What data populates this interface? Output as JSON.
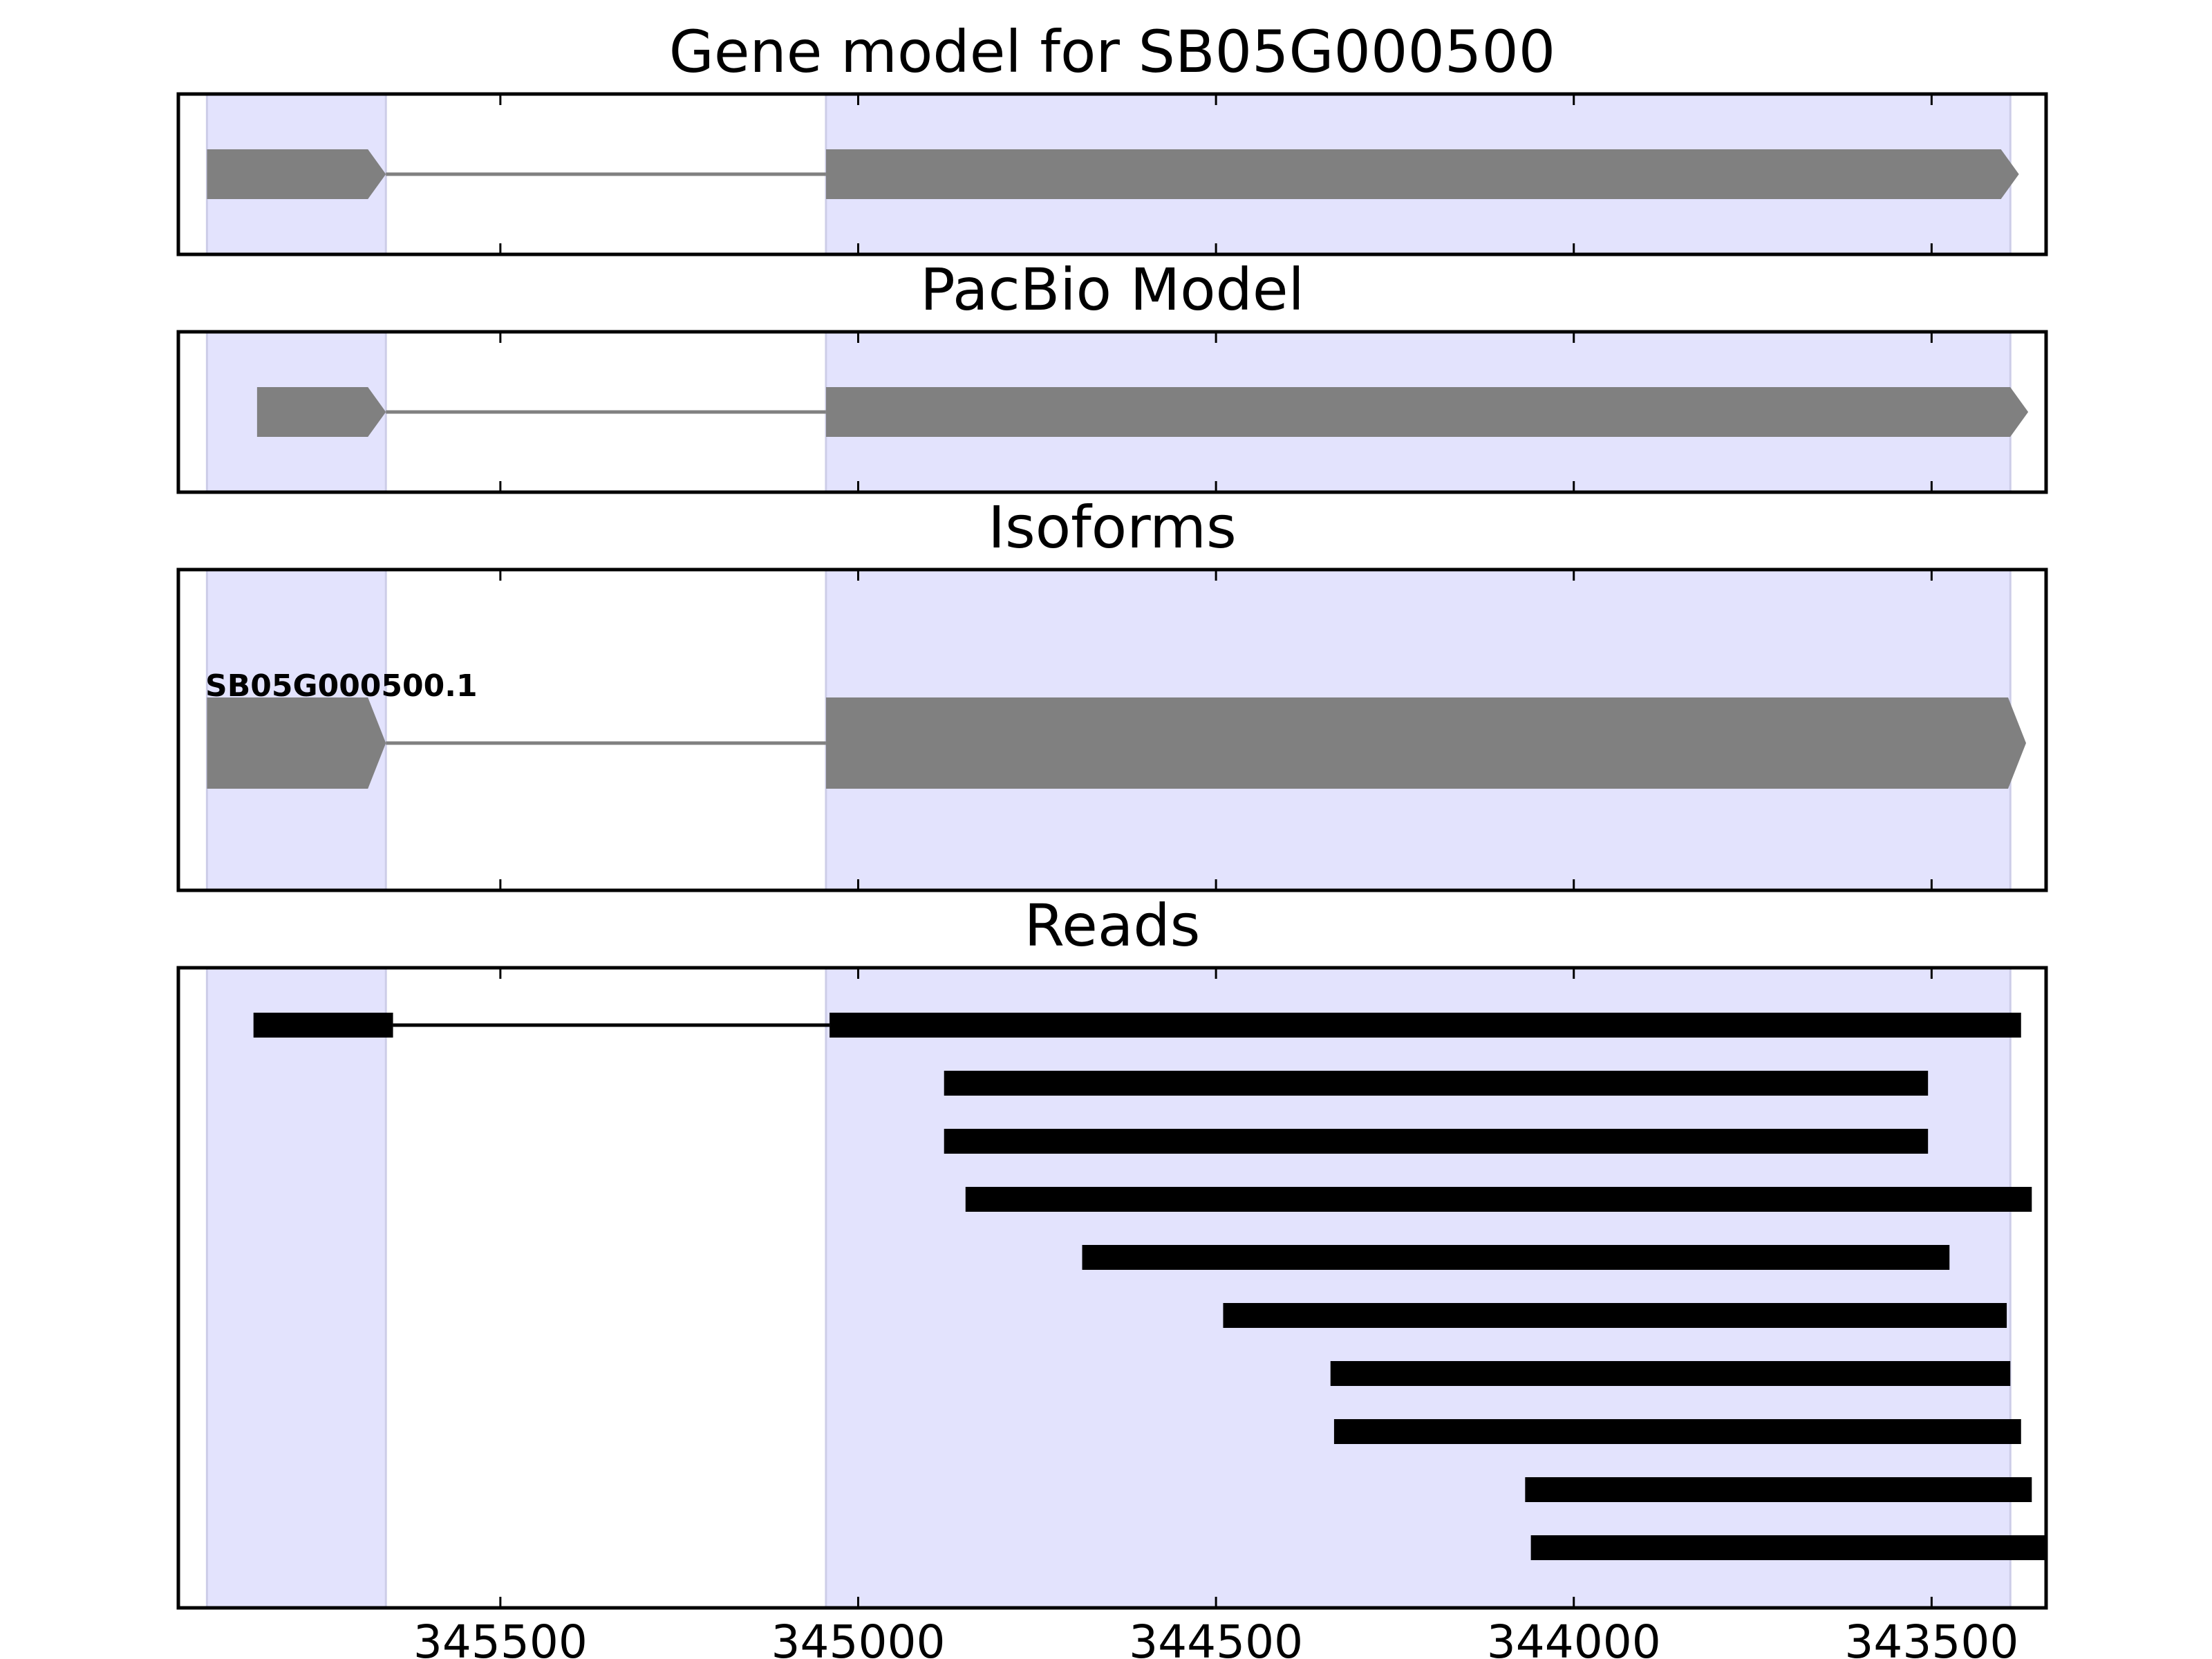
{
  "chart_data": [
    {
      "type": "gene-track",
      "title": "Gene model for SB05G000500",
      "exons": [
        [
          345910,
          345660
        ],
        [
          345045,
          343378
        ]
      ],
      "introns": [
        [
          345660,
          345045
        ]
      ],
      "strand": "-"
    },
    {
      "type": "gene-track",
      "title": "PacBio Model",
      "exons": [
        [
          345840,
          345660
        ],
        [
          345045,
          343365
        ]
      ],
      "introns": [
        [
          345660,
          345045
        ]
      ],
      "strand": "-"
    },
    {
      "type": "gene-track",
      "title": "Isoforms",
      "isoforms": [
        {
          "name": "SB05G000500.1",
          "exons": [
            [
              345910,
              345660
            ],
            [
              345045,
              343368
            ]
          ],
          "introns": [
            [
              345660,
              345045
            ]
          ],
          "strand": "-"
        }
      ]
    },
    {
      "type": "read-track",
      "title": "Reads",
      "reads": [
        {
          "blocks": [
            [
              345845,
              345650
            ],
            [
              345040,
              343375
            ]
          ]
        },
        {
          "blocks": [
            [
              344880,
              343505
            ]
          ]
        },
        {
          "blocks": [
            [
              344880,
              343505
            ]
          ]
        },
        {
          "blocks": [
            [
              344850,
              343360
            ]
          ]
        },
        {
          "blocks": [
            [
              344687,
              343475
            ]
          ]
        },
        {
          "blocks": [
            [
              344490,
              343395
            ]
          ]
        },
        {
          "blocks": [
            [
              344340,
              343390
            ]
          ]
        },
        {
          "blocks": [
            [
              344335,
              343375
            ]
          ]
        },
        {
          "blocks": [
            [
              344068,
              343360
            ]
          ]
        },
        {
          "blocks": [
            [
              344060,
              343340
            ]
          ]
        }
      ]
    }
  ],
  "x_axis": {
    "range": [
      345950,
      343340
    ],
    "reversed": true,
    "ticks": [
      345500,
      345000,
      344500,
      344000,
      343500
    ],
    "tick_labels": [
      "345500",
      "345000",
      "344500",
      "344000",
      "343500"
    ]
  },
  "highlight_regions": [
    [
      345910,
      345660
    ],
    [
      345045,
      343390
    ]
  ],
  "colors": {
    "exon": "#808080",
    "intron": "#808080",
    "read": "#000000",
    "highlight": "#e3e3fd",
    "highlight_edge": "#cdcde8",
    "frame": "#000000"
  }
}
